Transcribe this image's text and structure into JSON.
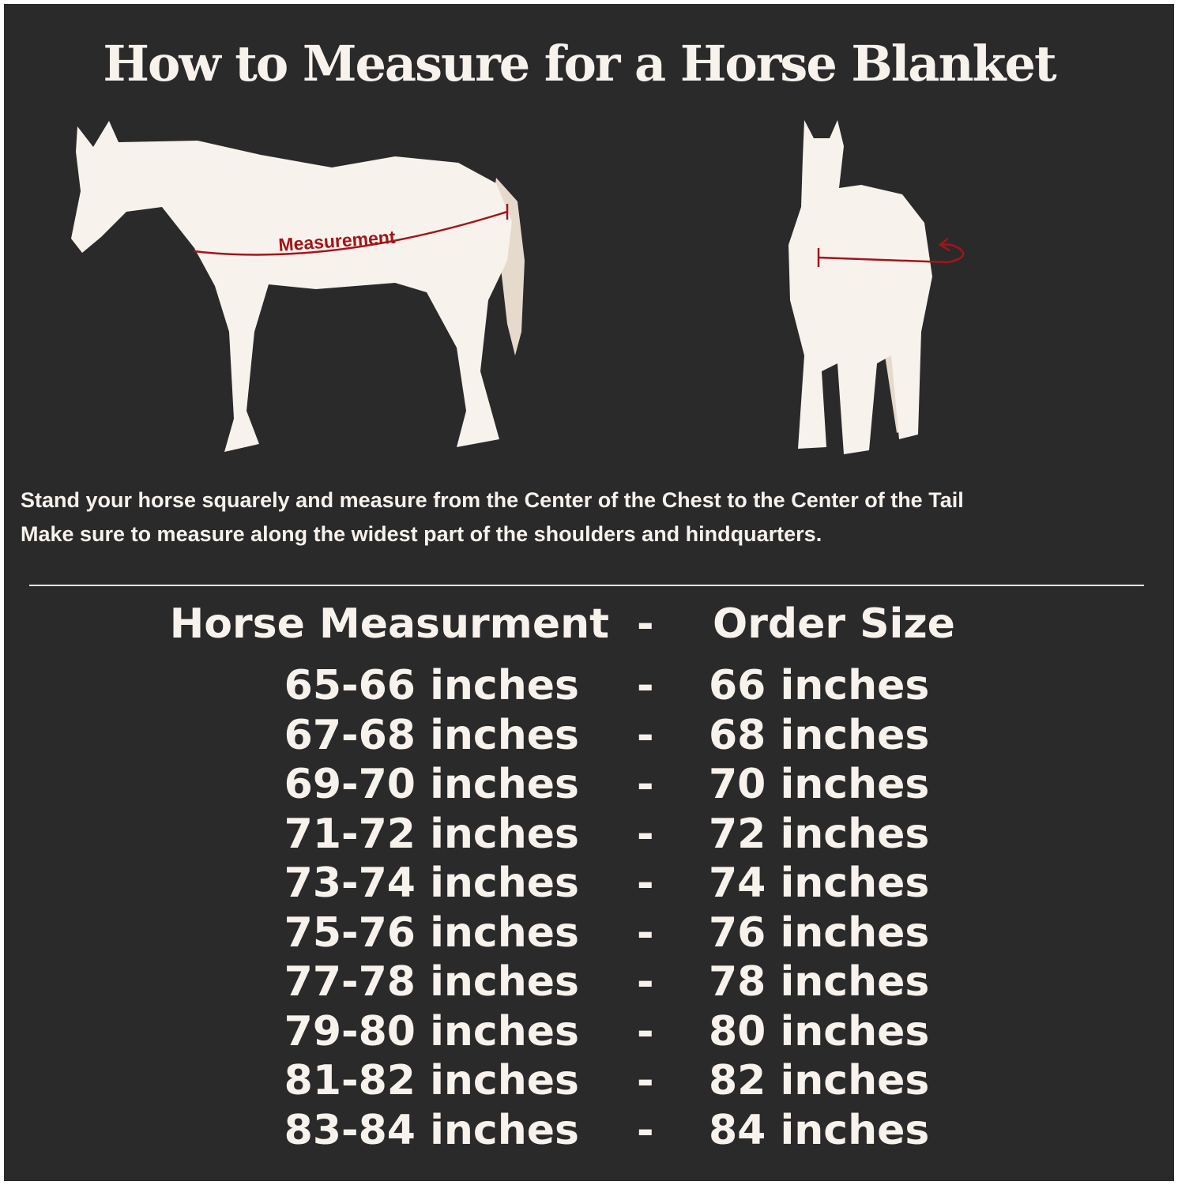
{
  "title": "How to Measure for a Horse Blanket",
  "diagram": {
    "measurement_label": "Measurement",
    "colors": {
      "background": "#2b2a2b",
      "horse": "#f7f2ec",
      "tail": "#e6dacd",
      "measure_line": "#a3141a"
    }
  },
  "instructions": [
    "Stand your horse squarely and measure from the Center of the Chest to the Center of the Tail",
    "Make sure to measure along the widest part of the shoulders and hindquarters."
  ],
  "table": {
    "header": {
      "left": "Horse Measurment",
      "sep": "-",
      "right": "Order Size"
    },
    "rows": [
      {
        "measurement": "65-66 inches",
        "sep": "-",
        "size": "66 inches"
      },
      {
        "measurement": "67-68 inches",
        "sep": "-",
        "size": "68 inches"
      },
      {
        "measurement": "69-70 inches",
        "sep": "-",
        "size": "70 inches"
      },
      {
        "measurement": "71-72 inches",
        "sep": "-",
        "size": "72 inches"
      },
      {
        "measurement": "73-74 inches",
        "sep": "-",
        "size": "74 inches"
      },
      {
        "measurement": "75-76 inches",
        "sep": "-",
        "size": "76 inches"
      },
      {
        "measurement": "77-78 inches",
        "sep": "-",
        "size": "78 inches"
      },
      {
        "measurement": "79-80 inches",
        "sep": "-",
        "size": "80 inches"
      },
      {
        "measurement": "81-82 inches",
        "sep": "-",
        "size": "82 inches"
      },
      {
        "measurement": "83-84 inches",
        "sep": "-",
        "size": "84 inches"
      }
    ]
  }
}
